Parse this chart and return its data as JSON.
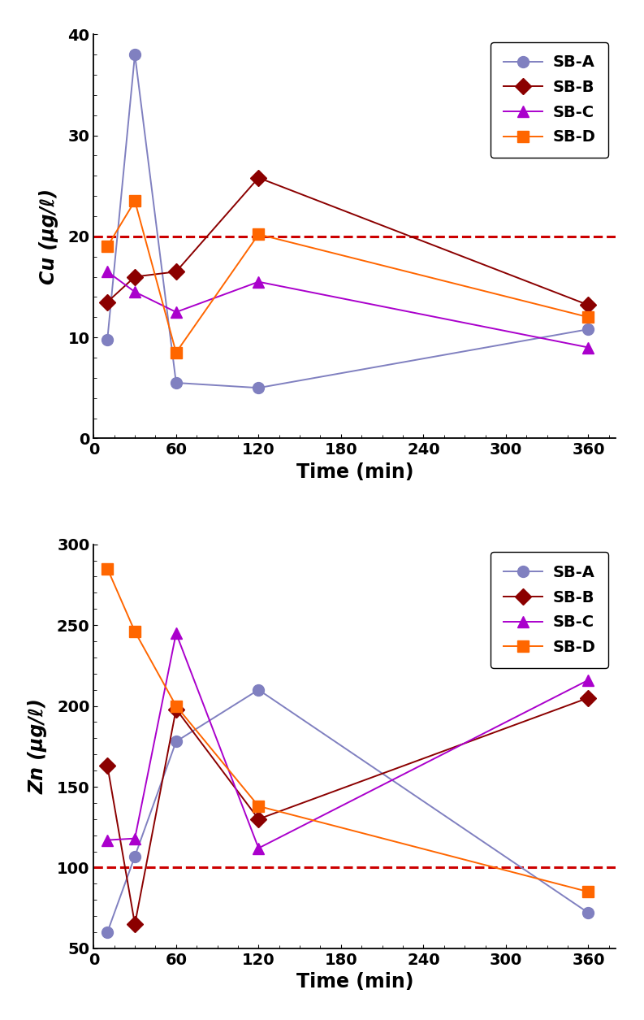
{
  "time_points": [
    10,
    30,
    60,
    120,
    360
  ],
  "cu_SB_A": [
    9.8,
    38.0,
    5.5,
    5.0,
    10.8
  ],
  "cu_SB_B": [
    13.5,
    16.0,
    16.5,
    25.8,
    13.2
  ],
  "cu_SB_C": [
    16.5,
    14.5,
    12.5,
    15.5,
    9.0
  ],
  "cu_SB_D": [
    19.0,
    23.5,
    8.5,
    20.2,
    12.0
  ],
  "zn_SB_A": [
    60,
    107,
    178,
    210,
    72
  ],
  "zn_SB_B": [
    163,
    65,
    198,
    130,
    205
  ],
  "zn_SB_C": [
    117,
    118,
    245,
    112,
    216
  ],
  "zn_SB_D": [
    285,
    246,
    200,
    138,
    85
  ],
  "cu_threshold": 20,
  "zn_threshold": 100,
  "color_A": "#8080C0",
  "color_B": "#8B0000",
  "color_C": "#AA00CC",
  "color_D": "#FF6600",
  "cu_ylim": [
    0,
    40
  ],
  "cu_yticks": [
    0,
    10,
    20,
    30,
    40
  ],
  "zn_ylim": [
    50,
    300
  ],
  "zn_yticks": [
    50,
    100,
    150,
    200,
    250,
    300
  ],
  "xlim": [
    0,
    380
  ],
  "xticks": [
    0,
    60,
    120,
    180,
    240,
    300,
    360
  ],
  "xlabel": "Time (min)",
  "cu_ylabel": "Cu (μg/ℓ)",
  "zn_ylabel": "Zn (μg/ℓ)",
  "legend_labels": [
    "SB-A",
    "SB-B",
    "SB-C",
    "SB-D"
  ],
  "marker_A": "o",
  "marker_B": "D",
  "marker_C": "^",
  "marker_D": "s",
  "linewidth": 1.4,
  "markersize": 10,
  "fontsize_label": 17,
  "fontsize_tick": 14,
  "fontsize_legend": 14
}
